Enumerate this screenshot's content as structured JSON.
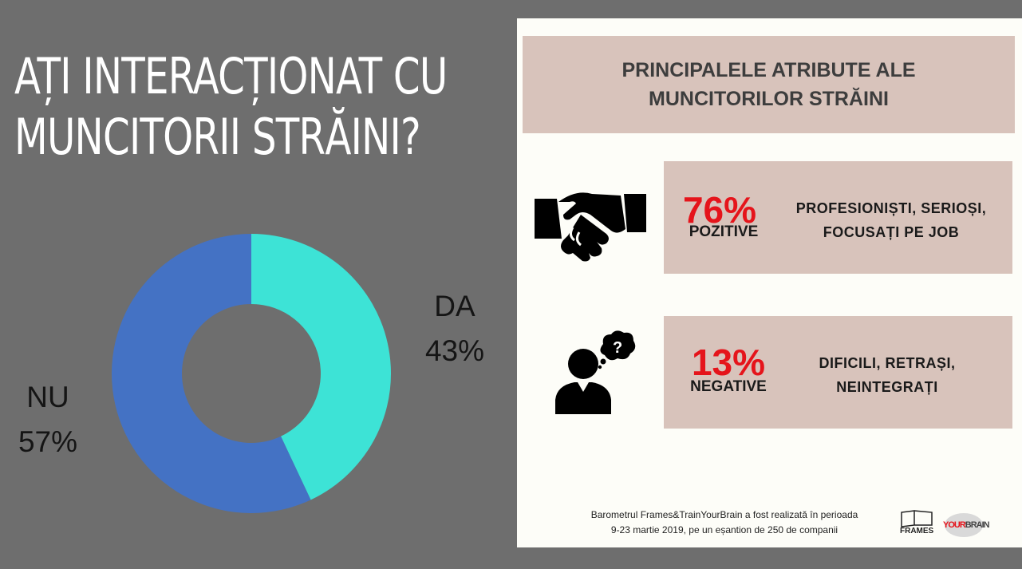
{
  "title": {
    "line1": "AȚI INTERACȚIONAT CU",
    "line2": "MUNCITORII STRĂINI?"
  },
  "chart_data": {
    "type": "pie",
    "title": "AȚI INTERACȚIONAT CU MUNCITORII STRĂINI?",
    "categories": [
      "DA",
      "NU"
    ],
    "values": [
      43,
      57
    ],
    "labels": [
      "43%",
      "57%"
    ],
    "colors": [
      "#3de3d6",
      "#4472c4"
    ],
    "hole": "donut"
  },
  "panel": {
    "header_line1": "PRINCIPALELE ATRIBUTE ALE",
    "header_line2": "MUNCITORILOR STRĂINI",
    "positive": {
      "percent": "76%",
      "label": "POZITIVE",
      "desc_line1": "PROFESIONIȘTI, SERIOȘI,",
      "desc_line2": "FOCUSAȚI PE JOB",
      "icon": "handshake-icon"
    },
    "negative": {
      "percent": "13%",
      "label": "NEGATIVE",
      "desc_line1": "DIFICILI, RETRAȘI,",
      "desc_line2": "NEINTEGRAȚI",
      "icon": "confused-person-icon"
    },
    "footer_line1": "Barometrul Frames&TrainYourBrain a fost realizată în perioada",
    "footer_line2": "9-23 martie 2019, pe un eșantion de 250 de companii",
    "logo1": "FRAMES",
    "logo2_a": "YOUR",
    "logo2_b": "BRAIN"
  },
  "colors": {
    "background": "#6e6e6e",
    "accent_red": "#e5141b",
    "box": "#d8c3bb"
  }
}
